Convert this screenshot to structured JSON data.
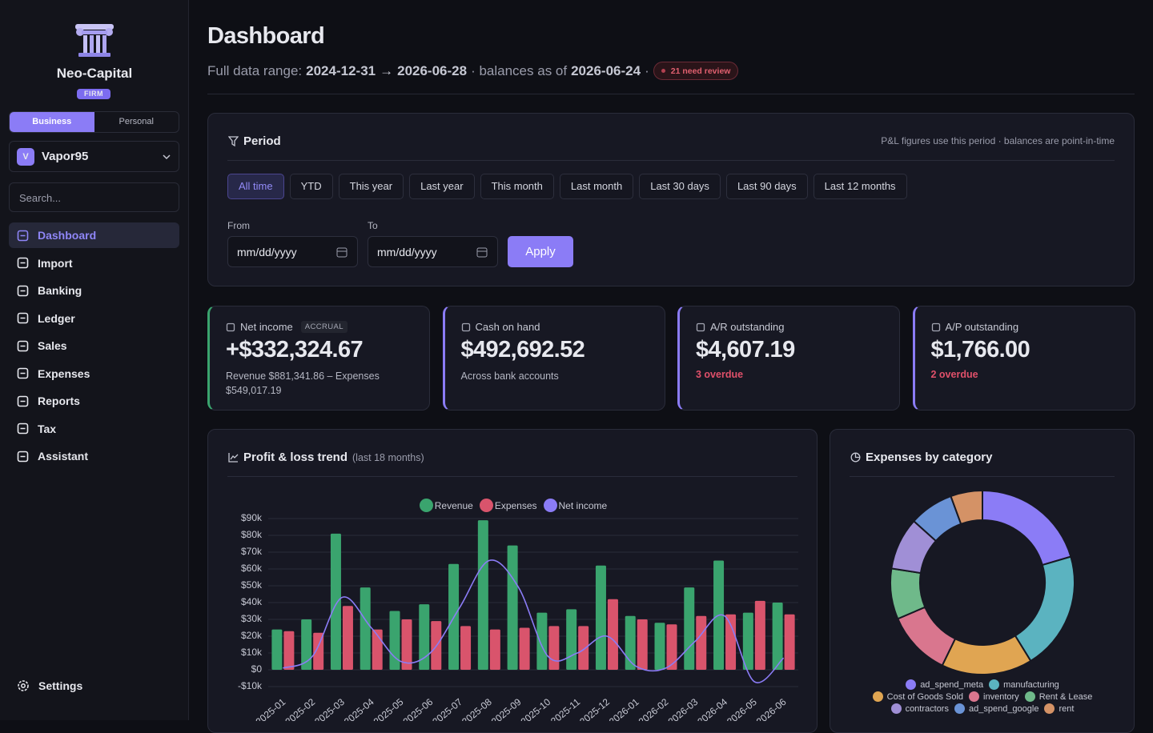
{
  "sidebar": {
    "brand": "Neo-Capital",
    "badge": "FIRM",
    "modes": [
      "Business",
      "Personal"
    ],
    "account": {
      "initial": "V",
      "name": "Vapor95"
    },
    "search": "Search...",
    "nav": [
      "Dashboard",
      "Import",
      "Banking",
      "Ledger",
      "Sales",
      "Expenses",
      "Reports",
      "Tax",
      "Assistant"
    ],
    "settings": "Settings"
  },
  "header": {
    "title": "Dashboard",
    "range_label": "Full data range:",
    "range_start": "2024-12-31",
    "arrow": "→",
    "range_end": "2026-06-28",
    "balances_label": "· balances as of",
    "balances_date": "2026-06-24",
    "separator": "·",
    "review_badge": "21 need review"
  },
  "period": {
    "title": "Period",
    "note": "P&L figures use this period · balances are point-in-time",
    "presets": [
      "All time",
      "YTD",
      "This year",
      "Last year",
      "This month",
      "Last month",
      "Last 30 days",
      "Last 90 days",
      "Last 12 months"
    ],
    "from_label": "From",
    "to_label": "To",
    "from_placeholder": "mm/dd/yyyy",
    "to_placeholder": "mm/dd/yyyy",
    "apply": "Apply"
  },
  "kpis": [
    {
      "label": "Net income",
      "tag": "ACCRUAL",
      "value": "+$332,324.67",
      "note": "Revenue $881,341.86 – Expenses $549,017.19"
    },
    {
      "label": "Cash on hand",
      "value": "$492,692.52",
      "note": "Across bank accounts"
    },
    {
      "label": "A/R outstanding",
      "value": "$4,607.19",
      "alert": "3 overdue"
    },
    {
      "label": "A/P outstanding",
      "value": "$1,766.00",
      "alert": "2 overdue"
    }
  ],
  "chart_data": [
    {
      "type": "bar",
      "title": "Profit & loss trend",
      "subtitle": "(last 18 months)",
      "categories": [
        "2025-01",
        "2025-02",
        "2025-03",
        "2025-04",
        "2025-05",
        "2025-06",
        "2025-07",
        "2025-08",
        "2025-09",
        "2025-10",
        "2025-11",
        "2025-12",
        "2026-01",
        "2026-02",
        "2026-03",
        "2026-04",
        "2026-05",
        "2026-06"
      ],
      "series": [
        {
          "name": "Revenue",
          "color": "#3aa46e",
          "values": [
            24000,
            30000,
            81000,
            49000,
            35000,
            39000,
            63000,
            89000,
            74000,
            34000,
            36000,
            62000,
            32000,
            28000,
            49000,
            65000,
            34000,
            40000
          ]
        },
        {
          "name": "Expenses",
          "color": "#d9546c",
          "values": [
            23000,
            22000,
            38000,
            24000,
            30000,
            29000,
            26000,
            24000,
            25000,
            26000,
            26000,
            42000,
            30000,
            27000,
            32000,
            33000,
            41000,
            33000
          ]
        },
        {
          "name": "Net income",
          "color": "#8b7cf6",
          "type": "line",
          "values": [
            1000,
            8000,
            43000,
            25000,
            5000,
            10000,
            37000,
            65000,
            49000,
            8000,
            10000,
            20000,
            2000,
            1000,
            17000,
            32000,
            -7000,
            7000
          ]
        }
      ],
      "ylim": [
        -10000,
        90000
      ],
      "yticks": [
        {
          "value": -10000,
          "label": "-$10k"
        },
        {
          "value": 0,
          "label": "$0"
        },
        {
          "value": 10000,
          "label": "$10k"
        },
        {
          "value": 20000,
          "label": "$20k"
        },
        {
          "value": 30000,
          "label": "$30k"
        },
        {
          "value": 40000,
          "label": "$40k"
        },
        {
          "value": 50000,
          "label": "$50k"
        },
        {
          "value": 60000,
          "label": "$60k"
        },
        {
          "value": 70000,
          "label": "$70k"
        },
        {
          "value": 80000,
          "label": "$80k"
        },
        {
          "value": 90000,
          "label": "$90k"
        }
      ],
      "grid": true
    },
    {
      "type": "donut",
      "title": "Expenses by category",
      "categories": [
        "ad_spend_meta",
        "manufacturing",
        "Cost of Goods Sold",
        "inventory",
        "Rent & Lease",
        "contractors",
        "ad_spend_google",
        "rent"
      ],
      "values": [
        20.5,
        20.8,
        16,
        11.4,
        8.9,
        9.2,
        7.8,
        5.6
      ],
      "colors": [
        "#8b7cf6",
        "#5bb3c0",
        "#e0a552",
        "#d9768e",
        "#6fb98a",
        "#a08fd6",
        "#6a93d6",
        "#d49266"
      ]
    }
  ]
}
